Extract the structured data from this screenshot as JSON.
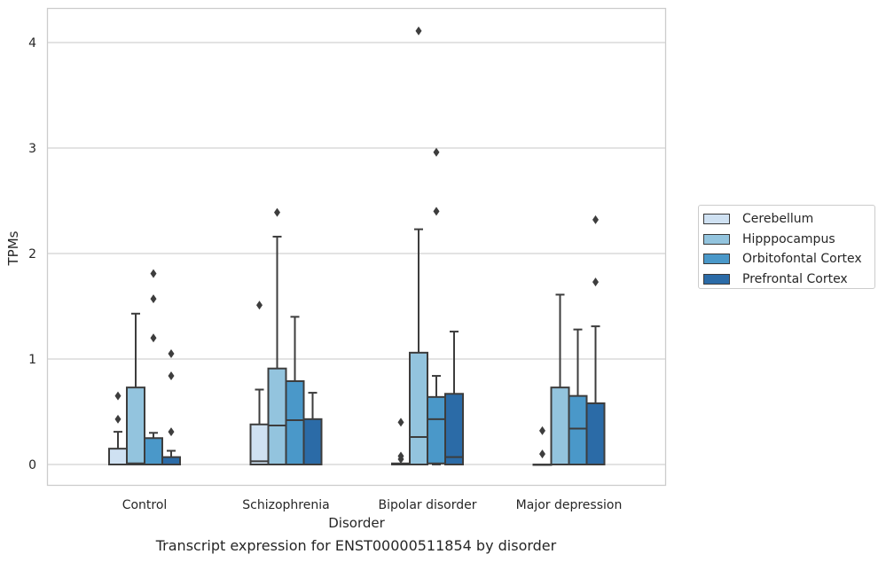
{
  "chart_data": {
    "type": "box",
    "title": "",
    "caption": "Transcript expression for ENST00000511854 by disorder",
    "xlabel": "Disorder",
    "ylabel": "TPMs",
    "ylim": [
      -0.2,
      4.3
    ],
    "yticks": [
      0,
      1,
      2,
      3,
      4
    ],
    "grid": "horizontal",
    "legend_position": "right",
    "categories": [
      "Control",
      "Schizophrenia",
      "Bipolar disorder",
      "Major depression"
    ],
    "series": [
      {
        "name": "Cerebellum",
        "color": "#cfe1f2",
        "boxes": [
          {
            "whislo": 0,
            "q1": 0,
            "med": 0,
            "q3": 0.15,
            "whishi": 0.31,
            "fliers": [
              0.43,
              0.65
            ]
          },
          {
            "whislo": 0,
            "q1": 0,
            "med": 0.03,
            "q3": 0.38,
            "whishi": 0.71,
            "fliers": [
              1.51
            ]
          },
          {
            "whislo": 0,
            "q1": 0,
            "med": 0,
            "q3": 0.01,
            "whishi": 0.01,
            "fliers": [
              0.05,
              0.08,
              0.4
            ]
          },
          {
            "whislo": 0,
            "q1": 0,
            "med": 0,
            "q3": 0,
            "whishi": 0,
            "fliers": [
              0.1,
              0.32
            ]
          }
        ]
      },
      {
        "name": "Hipppocampus",
        "color": "#93c4de",
        "boxes": [
          {
            "whislo": 0,
            "q1": 0,
            "med": 0.01,
            "q3": 0.73,
            "whishi": 1.43,
            "fliers": []
          },
          {
            "whislo": 0,
            "q1": 0,
            "med": 0.37,
            "q3": 0.91,
            "whishi": 2.16,
            "fliers": [
              2.39
            ]
          },
          {
            "whislo": 0,
            "q1": 0,
            "med": 0.26,
            "q3": 1.06,
            "whishi": 2.23,
            "fliers": [
              4.11
            ]
          },
          {
            "whislo": 0,
            "q1": 0,
            "med": 0,
            "q3": 0.73,
            "whishi": 1.61,
            "fliers": []
          }
        ]
      },
      {
        "name": "Orbitofontal Cortex",
        "color": "#4a98c9",
        "boxes": [
          {
            "whislo": 0,
            "q1": 0,
            "med": 0,
            "q3": 0.25,
            "whishi": 0.3,
            "fliers": [
              1.2,
              1.57,
              1.81
            ]
          },
          {
            "whislo": 0,
            "q1": 0,
            "med": 0.42,
            "q3": 0.79,
            "whishi": 1.4,
            "fliers": []
          },
          {
            "whislo": 0,
            "q1": 0.01,
            "med": 0.43,
            "q3": 0.64,
            "whishi": 0.84,
            "fliers": [
              2.4,
              2.96
            ]
          },
          {
            "whislo": 0,
            "q1": 0,
            "med": 0.34,
            "q3": 0.65,
            "whishi": 1.28,
            "fliers": []
          }
        ]
      },
      {
        "name": "Prefrontal Cortex",
        "color": "#2b6ba7",
        "boxes": [
          {
            "whislo": 0,
            "q1": 0,
            "med": 0,
            "q3": 0.07,
            "whishi": 0.13,
            "fliers": [
              0.31,
              0.84,
              1.05
            ]
          },
          {
            "whislo": 0,
            "q1": 0,
            "med": 0,
            "q3": 0.43,
            "whishi": 0.68,
            "fliers": []
          },
          {
            "whislo": 0,
            "q1": 0,
            "med": 0.07,
            "q3": 0.67,
            "whishi": 1.26,
            "fliers": []
          },
          {
            "whislo": 0,
            "q1": 0,
            "med": 0,
            "q3": 0.58,
            "whishi": 1.31,
            "fliers": [
              1.73,
              2.32
            ]
          }
        ]
      }
    ]
  }
}
